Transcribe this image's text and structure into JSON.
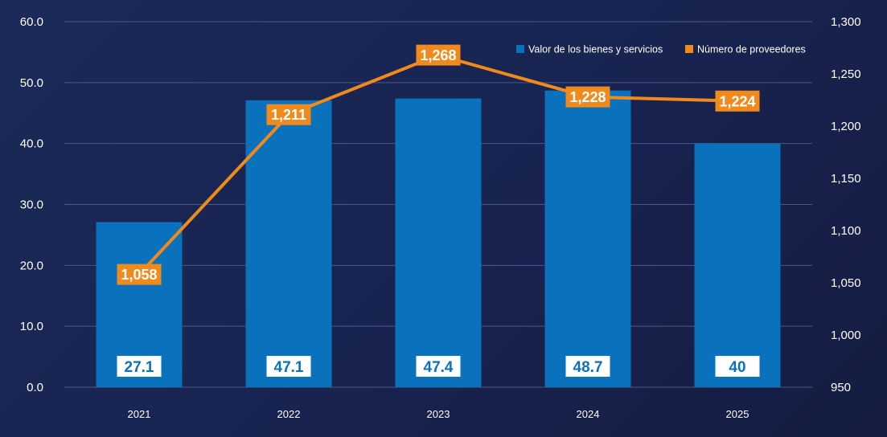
{
  "chart_data": {
    "type": "bar",
    "categories": [
      "2021",
      "2022",
      "2023",
      "2024",
      "2025"
    ],
    "series": [
      {
        "name": "Valor de los bienes y servicios",
        "kind": "bar",
        "axis": "left",
        "values": [
          27.1,
          47.1,
          47.4,
          48.7,
          40
        ],
        "labels": [
          "27.1",
          "47.1",
          "47.4",
          "48.7",
          "40"
        ],
        "color": "#0a72bd"
      },
      {
        "name": "Número de proveedores",
        "kind": "line",
        "axis": "right",
        "values": [
          1058,
          1211,
          1268,
          1228,
          1224
        ],
        "labels": [
          "1,058",
          "1,211",
          "1,268",
          "1,228",
          "1,224"
        ],
        "color": "#f08a1c"
      }
    ],
    "y_left": {
      "ylim": [
        0,
        60
      ],
      "ticks": [
        "0.0",
        "10.0",
        "20.0",
        "30.0",
        "40.0",
        "50.0",
        "60.0"
      ]
    },
    "y_right": {
      "ylim": [
        950,
        1300
      ],
      "ticks": [
        "950",
        "1,000",
        "1,050",
        "1,100",
        "1,150",
        "1,200",
        "1,250",
        "1,300"
      ]
    },
    "grid": true,
    "legend_position": "top-right",
    "colors": {
      "background": "#1b2a58",
      "gridline": "#4a5a85",
      "label_box": "#ffffff",
      "bar_label_text": "#0a72bd"
    }
  }
}
